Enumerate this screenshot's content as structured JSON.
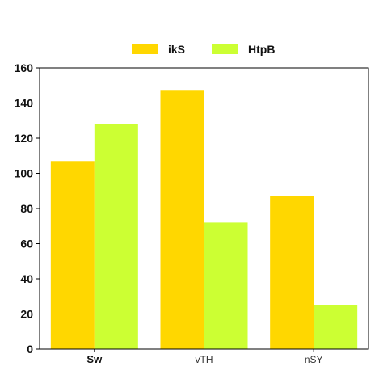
{
  "chart_data": {
    "type": "bar",
    "categories": [
      "Sw",
      "vTH",
      "nSY"
    ],
    "series": [
      {
        "name": "ikS",
        "values": [
          107,
          147,
          87
        ],
        "color": "#ffd700"
      },
      {
        "name": "HtpB",
        "values": [
          128,
          72,
          25
        ],
        "color": "#ccff33"
      }
    ],
    "yticks": [
      "0",
      "20",
      "40",
      "60",
      "80",
      "100",
      "120",
      "140",
      "160"
    ],
    "ylim": [
      0,
      160
    ],
    "grid": false,
    "legend_position": "top-center",
    "title": "",
    "xlabel": "",
    "ylabel": ""
  }
}
